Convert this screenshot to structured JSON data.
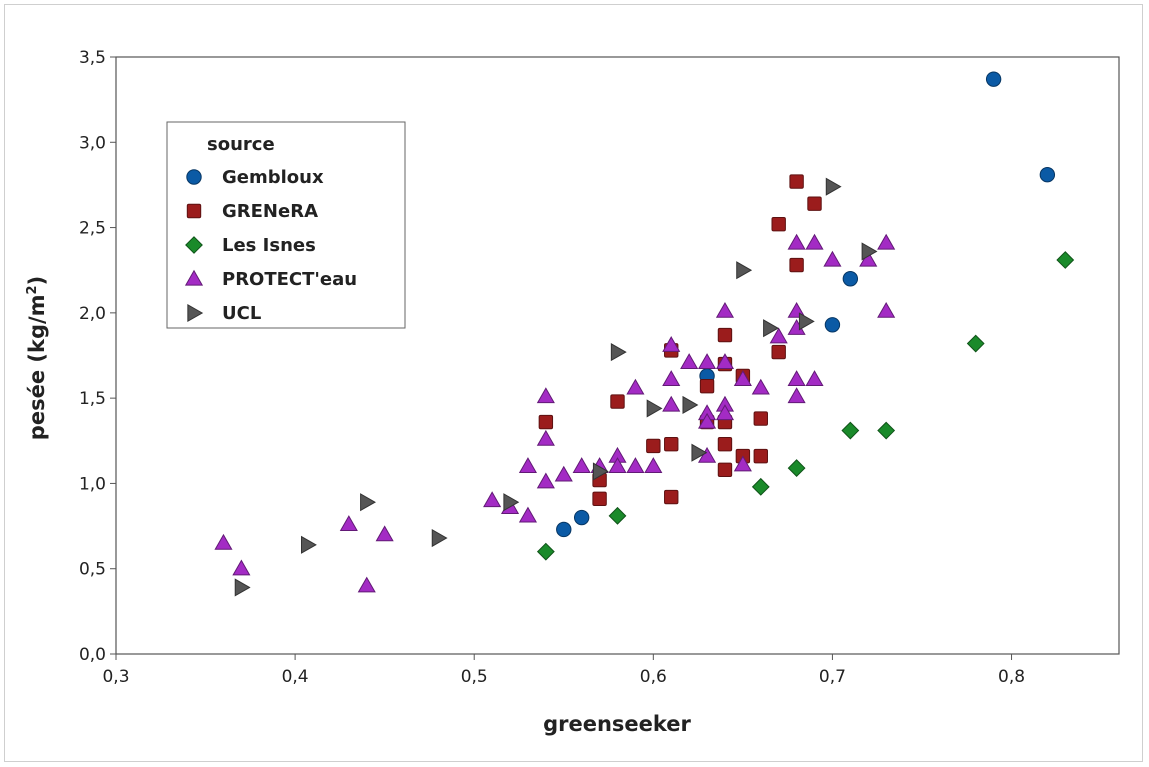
{
  "chart_data": {
    "type": "scatter",
    "title": "",
    "xlabel": "greenseeker",
    "ylabel": "pesée (kg/m",
    "ylabel_sup": "2",
    "ylabel_close": ")",
    "xlim": [
      0.3,
      0.86
    ],
    "ylim": [
      0.0,
      3.5
    ],
    "x_ticks": [
      0.3,
      0.4,
      0.5,
      0.6,
      0.7,
      0.8
    ],
    "x_tick_labels": [
      "0,3",
      "0,4",
      "0,5",
      "0,6",
      "0,7",
      "0,8"
    ],
    "y_ticks": [
      0.0,
      0.5,
      1.0,
      1.5,
      2.0,
      2.5,
      3.0,
      3.5
    ],
    "y_tick_labels": [
      "0,0",
      "0,5",
      "1,0",
      "1,5",
      "2,0",
      "2,5",
      "3,0",
      "3,5"
    ],
    "grid": false,
    "legend": {
      "title": "source",
      "position": "top-left"
    },
    "series": [
      {
        "name": "Gembloux",
        "marker": "circle",
        "color": "#0b5aa5",
        "points": [
          [
            0.55,
            0.73
          ],
          [
            0.56,
            0.8
          ],
          [
            0.63,
            1.63
          ],
          [
            0.7,
            1.93
          ],
          [
            0.71,
            2.2
          ],
          [
            0.79,
            3.37
          ],
          [
            0.82,
            2.81
          ]
        ]
      },
      {
        "name": "GRENeRA",
        "marker": "square",
        "color": "#9b1c1c",
        "points": [
          [
            0.54,
            1.36
          ],
          [
            0.57,
            1.02
          ],
          [
            0.57,
            0.91
          ],
          [
            0.58,
            1.48
          ],
          [
            0.6,
            1.22
          ],
          [
            0.61,
            1.23
          ],
          [
            0.61,
            1.78
          ],
          [
            0.61,
            0.92
          ],
          [
            0.63,
            1.57
          ],
          [
            0.63,
            1.36
          ],
          [
            0.64,
            1.87
          ],
          [
            0.64,
            1.7
          ],
          [
            0.64,
            1.36
          ],
          [
            0.64,
            1.23
          ],
          [
            0.64,
            1.08
          ],
          [
            0.65,
            1.63
          ],
          [
            0.65,
            1.16
          ],
          [
            0.66,
            1.38
          ],
          [
            0.66,
            1.16
          ],
          [
            0.67,
            2.52
          ],
          [
            0.67,
            1.77
          ],
          [
            0.68,
            2.77
          ],
          [
            0.68,
            2.28
          ],
          [
            0.69,
            2.64
          ]
        ]
      },
      {
        "name": "Les Isnes",
        "marker": "diamond",
        "color": "#1a8a2a",
        "points": [
          [
            0.54,
            0.6
          ],
          [
            0.58,
            0.81
          ],
          [
            0.66,
            0.98
          ],
          [
            0.68,
            1.09
          ],
          [
            0.71,
            1.31
          ],
          [
            0.73,
            1.31
          ],
          [
            0.78,
            1.82
          ],
          [
            0.83,
            2.31
          ]
        ]
      },
      {
        "name": "PROTECT'eau",
        "marker": "triangle-up",
        "color": "#a32bc4",
        "points": [
          [
            0.36,
            0.65
          ],
          [
            0.37,
            0.5
          ],
          [
            0.43,
            0.76
          ],
          [
            0.44,
            0.4
          ],
          [
            0.45,
            0.7
          ],
          [
            0.51,
            0.9
          ],
          [
            0.52,
            0.86
          ],
          [
            0.53,
            1.1
          ],
          [
            0.53,
            0.81
          ],
          [
            0.54,
            1.51
          ],
          [
            0.54,
            1.26
          ],
          [
            0.54,
            1.01
          ],
          [
            0.55,
            1.05
          ],
          [
            0.56,
            1.1
          ],
          [
            0.57,
            1.1
          ],
          [
            0.58,
            1.16
          ],
          [
            0.58,
            1.1
          ],
          [
            0.59,
            1.56
          ],
          [
            0.59,
            1.1
          ],
          [
            0.6,
            1.1
          ],
          [
            0.61,
            1.81
          ],
          [
            0.61,
            1.61
          ],
          [
            0.61,
            1.46
          ],
          [
            0.62,
            1.71
          ],
          [
            0.63,
            1.71
          ],
          [
            0.63,
            1.41
          ],
          [
            0.63,
            1.36
          ],
          [
            0.63,
            1.16
          ],
          [
            0.64,
            2.01
          ],
          [
            0.64,
            1.71
          ],
          [
            0.64,
            1.46
          ],
          [
            0.64,
            1.41
          ],
          [
            0.65,
            1.61
          ],
          [
            0.65,
            1.11
          ],
          [
            0.66,
            1.56
          ],
          [
            0.67,
            1.86
          ],
          [
            0.68,
            2.41
          ],
          [
            0.68,
            2.01
          ],
          [
            0.68,
            1.91
          ],
          [
            0.68,
            1.61
          ],
          [
            0.68,
            1.51
          ],
          [
            0.69,
            2.41
          ],
          [
            0.69,
            1.61
          ],
          [
            0.7,
            2.31
          ],
          [
            0.72,
            2.31
          ],
          [
            0.73,
            2.41
          ],
          [
            0.73,
            2.01
          ]
        ]
      },
      {
        "name": "UCL",
        "marker": "triangle-right",
        "color": "#555555",
        "points": [
          [
            0.37,
            0.39
          ],
          [
            0.407,
            0.64
          ],
          [
            0.44,
            0.89
          ],
          [
            0.48,
            0.68
          ],
          [
            0.52,
            0.89
          ],
          [
            0.57,
            1.07
          ],
          [
            0.58,
            1.77
          ],
          [
            0.6,
            1.44
          ],
          [
            0.62,
            1.46
          ],
          [
            0.625,
            1.18
          ],
          [
            0.65,
            2.25
          ],
          [
            0.665,
            1.91
          ],
          [
            0.685,
            1.95
          ],
          [
            0.7,
            2.74
          ],
          [
            0.72,
            2.36
          ]
        ]
      }
    ]
  }
}
